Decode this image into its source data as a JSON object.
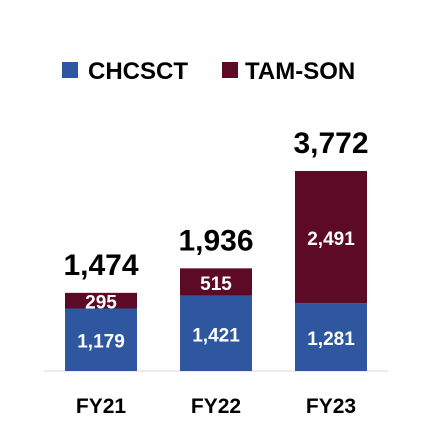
{
  "chart_data": {
    "type": "bar",
    "stacked": true,
    "categories": [
      "FY21",
      "FY22",
      "FY23"
    ],
    "series": [
      {
        "name": "CHCSCT",
        "color": "#2E57A0",
        "values": [
          1179,
          1421,
          1281
        ],
        "labels": [
          "1,179",
          "1,421",
          "1,281"
        ]
      },
      {
        "name": "TAM-SON",
        "color": "#5C0A26",
        "values": [
          295,
          515,
          2491
        ],
        "labels": [
          "295",
          "515",
          "2,491"
        ]
      }
    ],
    "totals": [
      1474,
      1936,
      3772
    ],
    "total_labels": [
      "1,474",
      "1,936",
      "3,772"
    ],
    "ylim": [
      0,
      3772
    ],
    "legend": "top",
    "grid": false
  }
}
